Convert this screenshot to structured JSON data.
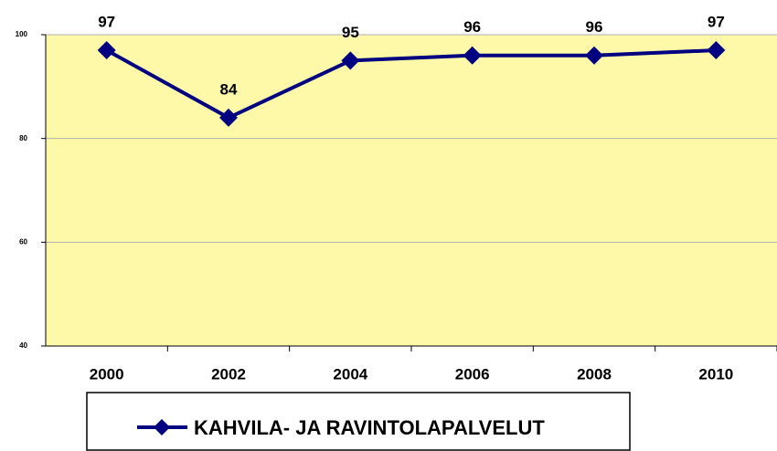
{
  "chart_data": {
    "type": "line",
    "categories": [
      "2000",
      "2002",
      "2004",
      "2006",
      "2008",
      "2010"
    ],
    "series": [
      {
        "name": "KAHVILA- JA RAVINTOLAPALVELUT",
        "color": "#000080",
        "values": [
          97,
          84,
          95,
          96,
          96,
          97
        ]
      }
    ],
    "ylim": [
      40,
      100
    ],
    "yticks": [
      40,
      60,
      80,
      100
    ],
    "grid": true,
    "plot_background": "#fdf9a8"
  }
}
